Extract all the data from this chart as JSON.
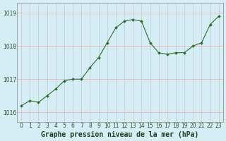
{
  "x": [
    0,
    1,
    2,
    3,
    4,
    5,
    6,
    7,
    8,
    9,
    10,
    11,
    12,
    13,
    14,
    15,
    16,
    17,
    18,
    19,
    20,
    21,
    22,
    23
  ],
  "y": [
    1016.2,
    1016.35,
    1016.3,
    1016.5,
    1016.7,
    1016.95,
    1017.0,
    1017.0,
    1017.35,
    1017.65,
    1018.1,
    1018.55,
    1018.75,
    1018.8,
    1018.75,
    1018.1,
    1017.8,
    1017.75,
    1017.8,
    1017.8,
    1018.0,
    1018.1,
    1018.65,
    1018.9
  ],
  "line_color": "#2a6e2a",
  "marker_color": "#2a6e2a",
  "bg_color": "#d5eef5",
  "grid_color_h": "#f0b0b0",
  "grid_color_v": "#c8c8c8",
  "xlabel": "Graphe pression niveau de la mer (hPa)",
  "xlim": [
    -0.5,
    23.5
  ],
  "ylim": [
    1015.7,
    1019.3
  ],
  "yticks": [
    1016,
    1017,
    1018,
    1019
  ],
  "xticks": [
    0,
    1,
    2,
    3,
    4,
    5,
    6,
    7,
    8,
    9,
    10,
    11,
    12,
    13,
    14,
    15,
    16,
    17,
    18,
    19,
    20,
    21,
    22,
    23
  ],
  "xlabel_fontsize": 7,
  "tick_fontsize": 5.5
}
